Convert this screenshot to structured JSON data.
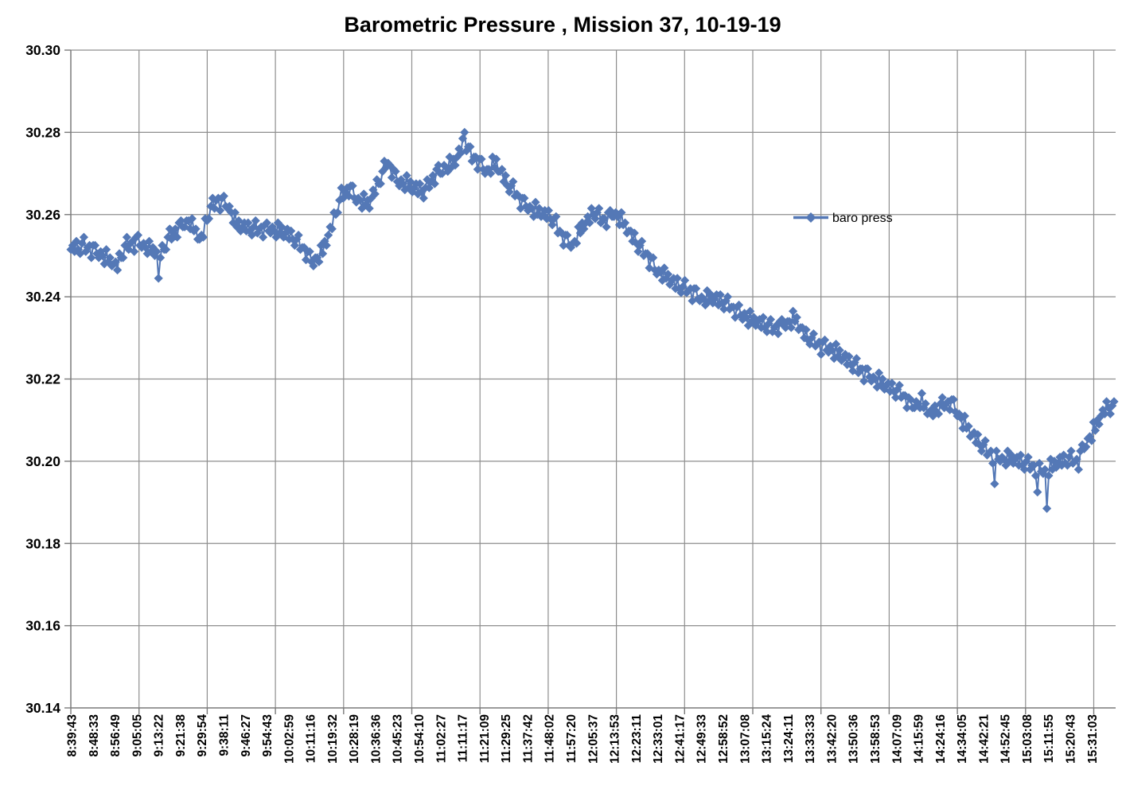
{
  "colors": {
    "series_blue": "#5478b6",
    "gridline_gray": "#8e8e8e",
    "axis_gray": "#7a7a7a",
    "text_black": "#000000",
    "background": "#ffffff"
  },
  "chart_data": {
    "type": "line",
    "title": "Barometric Pressure , Mission 37, 10-19-19",
    "xlabel": "",
    "ylabel": "",
    "y_min": 30.14,
    "y_max": 30.3,
    "y_tick_step": 0.02,
    "y_ticks": [
      "30.30",
      "30.28",
      "30.26",
      "30.24",
      "30.22",
      "30.20",
      "30.18",
      "30.16",
      "30.14"
    ],
    "x_ticks": [
      "8:39:43",
      "8:48:33",
      "8:56:49",
      "9:05:05",
      "9:13:22",
      "9:21:38",
      "9:29:54",
      "9:38:11",
      "9:46:27",
      "9:54:43",
      "10:02:59",
      "10:11:16",
      "10:19:32",
      "10:28:19",
      "10:36:36",
      "10:45:23",
      "10:54:10",
      "11:02:27",
      "11:11:17",
      "11:21:09",
      "11:29:25",
      "11:37:42",
      "11:48:02",
      "11:57:20",
      "12:05:37",
      "12:13:53",
      "12:23:11",
      "12:33:01",
      "12:41:17",
      "12:49:33",
      "12:58:52",
      "13:07:08",
      "13:15:24",
      "13:24:11",
      "13:33:33",
      "13:42:20",
      "13:50:36",
      "13:58:53",
      "14:07:09",
      "14:15:59",
      "14:24:16",
      "14:34:05",
      "14:42:21",
      "14:52:45",
      "15:03:08",
      "15:11:55",
      "15:20:43",
      "15:31:03"
    ],
    "grid": {
      "vertical_divisions": 15,
      "horizontal_on": true,
      "vertical_on": true
    },
    "legend": {
      "label": "baro press",
      "position": "inside-right"
    },
    "series": [
      {
        "name": "baro press",
        "color": "#5478b6",
        "marker": "diamond",
        "line_with_markers": true,
        "n_points": 560,
        "envelope_keypoints": [
          [
            0.0,
            30.2515
          ],
          [
            0.0122,
            30.2525
          ],
          [
            0.0275,
            30.2505
          ],
          [
            0.0443,
            30.2475
          ],
          [
            0.0528,
            30.2525
          ],
          [
            0.0635,
            30.2535
          ],
          [
            0.0757,
            30.2515
          ],
          [
            0.0872,
            30.2505
          ],
          [
            0.094,
            30.2545
          ],
          [
            0.1017,
            30.2565
          ],
          [
            0.1131,
            30.2585
          ],
          [
            0.1246,
            30.2535
          ],
          [
            0.1322,
            30.2605
          ],
          [
            0.1399,
            30.2635
          ],
          [
            0.1499,
            30.2625
          ],
          [
            0.159,
            30.2575
          ],
          [
            0.1728,
            30.2565
          ],
          [
            0.1904,
            30.2565
          ],
          [
            0.2072,
            30.2555
          ],
          [
            0.2209,
            30.2525
          ],
          [
            0.2317,
            30.2485
          ],
          [
            0.2408,
            30.2505
          ],
          [
            0.2492,
            30.2565
          ],
          [
            0.2592,
            30.2645
          ],
          [
            0.2661,
            30.2665
          ],
          [
            0.276,
            30.2635
          ],
          [
            0.2859,
            30.2625
          ],
          [
            0.2959,
            30.2685
          ],
          [
            0.3035,
            30.273
          ],
          [
            0.3119,
            30.2685
          ],
          [
            0.3203,
            30.2675
          ],
          [
            0.3295,
            30.2665
          ],
          [
            0.3387,
            30.2655
          ],
          [
            0.3486,
            30.2695
          ],
          [
            0.3586,
            30.2715
          ],
          [
            0.3677,
            30.2725
          ],
          [
            0.3777,
            30.278
          ],
          [
            0.383,
            30.2745
          ],
          [
            0.3891,
            30.2735
          ],
          [
            0.3983,
            30.2705
          ],
          [
            0.4075,
            30.2725
          ],
          [
            0.4159,
            30.2685
          ],
          [
            0.4251,
            30.2655
          ],
          [
            0.435,
            30.2625
          ],
          [
            0.448,
            30.2605
          ],
          [
            0.461,
            30.2595
          ],
          [
            0.4717,
            30.2545
          ],
          [
            0.4809,
            30.2525
          ],
          [
            0.4916,
            30.2575
          ],
          [
            0.5015,
            30.2605
          ],
          [
            0.5115,
            30.2585
          ],
          [
            0.5206,
            30.2605
          ],
          [
            0.5306,
            30.2575
          ],
          [
            0.5413,
            30.2535
          ],
          [
            0.5512,
            30.2505
          ],
          [
            0.5619,
            30.2465
          ],
          [
            0.5726,
            30.2445
          ],
          [
            0.5833,
            30.2425
          ],
          [
            0.594,
            30.2415
          ],
          [
            0.6047,
            30.2395
          ],
          [
            0.6162,
            30.2395
          ],
          [
            0.6277,
            30.2385
          ],
          [
            0.6392,
            30.2365
          ],
          [
            0.6506,
            30.2345
          ],
          [
            0.6621,
            30.2335
          ],
          [
            0.6736,
            30.2325
          ],
          [
            0.685,
            30.2335
          ],
          [
            0.6942,
            30.2345
          ],
          [
            0.7042,
            30.2305
          ],
          [
            0.7156,
            30.2285
          ],
          [
            0.7271,
            30.2275
          ],
          [
            0.7385,
            30.2255
          ],
          [
            0.75,
            30.2235
          ],
          [
            0.7615,
            30.2215
          ],
          [
            0.773,
            30.2195
          ],
          [
            0.7844,
            30.218
          ],
          [
            0.7959,
            30.2165
          ],
          [
            0.8058,
            30.2135
          ],
          [
            0.815,
            30.2145
          ],
          [
            0.8249,
            30.2115
          ],
          [
            0.8341,
            30.2135
          ],
          [
            0.8433,
            30.2145
          ],
          [
            0.8532,
            30.2105
          ],
          [
            0.8632,
            30.2065
          ],
          [
            0.8739,
            30.2035
          ],
          [
            0.8838,
            30.2015
          ],
          [
            0.8937,
            30.2005
          ],
          [
            0.9044,
            30.2005
          ],
          [
            0.9144,
            30.1995
          ],
          [
            0.9243,
            30.1985
          ],
          [
            0.935,
            30.1975
          ],
          [
            0.945,
            30.1995
          ],
          [
            0.9564,
            30.2005
          ],
          [
            0.9656,
            30.2
          ],
          [
            0.9733,
            30.2045
          ],
          [
            0.9809,
            30.2075
          ],
          [
            0.9862,
            30.2105
          ],
          [
            0.9939,
            30.2135
          ],
          [
            1.0,
            30.2125
          ]
        ],
        "noise_pattern": [
          0,
          0.001,
          -0.001,
          0.0015,
          -0.0005,
          -0.0015,
          0.0005,
          0.002,
          -0.001,
          0,
          0.0005,
          -0.002,
          0.001,
          0.0015,
          -0.0005,
          -0.001,
          0.0005,
          0,
          -0.0015,
          0.002,
          -0.0005,
          0.001,
          -0.001
        ],
        "value_quantum": 0.0005,
        "outliers": [
          [
            0.0833,
            30.2445
          ],
          [
            0.3777,
            30.28
          ],
          [
            0.8861,
            30.1945
          ],
          [
            0.9266,
            30.1925
          ],
          [
            0.9358,
            30.1885
          ]
        ]
      }
    ]
  }
}
